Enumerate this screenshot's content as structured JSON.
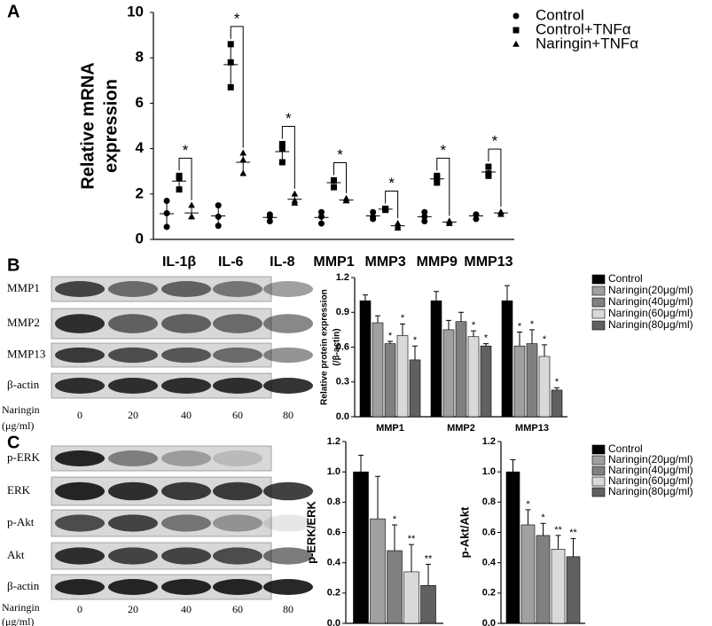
{
  "panels": [
    "A",
    "B",
    "C"
  ],
  "blots": [
    {
      "rows": [
        "MMP1",
        "MMP2",
        "MMP13",
        "β-actin"
      ],
      "treatment": [
        "Naringin",
        "(μg/ml)"
      ],
      "doses": [
        "0",
        "20",
        "40",
        "60",
        "80"
      ]
    },
    {
      "rows": [
        "p-ERK",
        "ERK",
        "p-Akt",
        "Akt",
        "β-actin"
      ],
      "treatment": [
        "Naringin",
        "(μg/ml)"
      ],
      "doses": [
        "0",
        "20",
        "40",
        "60",
        "80"
      ]
    }
  ],
  "chart_data": [
    {
      "type": "dot",
      "ylabel": [
        "Relative mRNA",
        "expression"
      ],
      "categories": [
        "IL-1β",
        "IL-6",
        "IL-8",
        "MMP1",
        "MMP3",
        "MMP9",
        "MMP13"
      ],
      "series": [
        {
          "name": "Control",
          "marker": "circle",
          "color": "#000000",
          "values": [
            [
              1.7,
              1.15,
              0.55
            ],
            [
              1.0,
              0.6,
              1.5
            ],
            [
              1.1,
              0.8,
              1.0
            ],
            [
              1.2,
              0.7,
              1.0
            ],
            [
              1.2,
              0.9,
              1.0
            ],
            [
              1.2,
              0.8,
              1.0
            ],
            [
              1.1,
              0.9,
              1.1
            ]
          ]
        },
        {
          "name": "Control+TNFα",
          "marker": "square",
          "color": "#000000",
          "values": [
            [
              2.8,
              2.2,
              2.7
            ],
            [
              8.6,
              7.8,
              6.7
            ],
            [
              4.2,
              4.0,
              3.4
            ],
            [
              2.6,
              2.3,
              2.6
            ],
            [
              1.35,
              1.3,
              1.35
            ],
            [
              2.7,
              2.5,
              2.8
            ],
            [
              3.2,
              2.8,
              2.9
            ]
          ]
        },
        {
          "name": "Naringin+TNFα",
          "marker": "triangle",
          "color": "#000000",
          "values": [
            [
              1.5,
              1.0,
              1.0
            ],
            [
              3.8,
              3.5,
              2.9
            ],
            [
              2.0,
              1.7,
              1.6
            ],
            [
              1.8,
              1.7,
              1.7
            ],
            [
              0.7,
              0.5,
              0.6
            ],
            [
              0.8,
              0.7,
              0.8
            ],
            [
              1.1,
              1.2,
              1.2
            ]
          ]
        }
      ],
      "significance": [
        "*",
        "*",
        "*",
        "*",
        "*",
        "*",
        "*"
      ],
      "ylim": [
        0,
        10
      ],
      "yticks": [
        0,
        2,
        4,
        6,
        8,
        10
      ]
    },
    {
      "type": "bar",
      "ylabel": [
        "Relative protein expression",
        "(/β-actin)"
      ],
      "categories": [
        "MMP1",
        "MMP2",
        "MMP13"
      ],
      "series": [
        {
          "name": "Control",
          "color": "#000000",
          "values": [
            1.0,
            1.0,
            1.0
          ],
          "errors": [
            0.05,
            0.08,
            0.13
          ],
          "significance": [
            null,
            null,
            null
          ]
        },
        {
          "name": "Naringin(20μg/ml)",
          "color": "#a0a0a0",
          "values": [
            0.81,
            0.75,
            0.61
          ],
          "errors": [
            0.06,
            0.08,
            0.12
          ],
          "significance": [
            null,
            null,
            "*"
          ]
        },
        {
          "name": "Naringin(40μg/ml)",
          "color": "#808080",
          "values": [
            0.63,
            0.82,
            0.63
          ],
          "errors": [
            0.02,
            0.08,
            0.12
          ],
          "significance": [
            "*",
            null,
            "*"
          ]
        },
        {
          "name": "Naringin(60μg/ml)",
          "color": "#d9d9d9",
          "values": [
            0.7,
            0.69,
            0.52
          ],
          "errors": [
            0.1,
            0.05,
            0.1
          ],
          "significance": [
            "*",
            "*",
            "*"
          ]
        },
        {
          "name": "Naringin(80μg/ml)",
          "color": "#606060",
          "values": [
            0.49,
            0.61,
            0.23
          ],
          "errors": [
            0.12,
            0.02,
            0.02
          ],
          "significance": [
            "*",
            "*",
            "*"
          ]
        }
      ],
      "ylim": [
        0,
        1.2
      ],
      "yticks": [
        {
          "value": 0,
          "label": "0.0"
        },
        {
          "value": 0.3,
          "label": "0.3"
        },
        {
          "value": 0.6,
          "label": "0.6"
        },
        {
          "value": 0.9,
          "label": "0.9"
        },
        {
          "value": 1.2,
          "label": "1.2"
        }
      ]
    },
    {
      "type": "bar",
      "ylabel": [
        "p-ERK/ERK"
      ],
      "series": [
        {
          "color": "#000000",
          "values": [
            1.0
          ],
          "errors": [
            0.11
          ],
          "significance": [
            null
          ]
        },
        {
          "color": "#a0a0a0",
          "values": [
            0.69
          ],
          "errors": [
            0.28
          ],
          "significance": [
            null
          ]
        },
        {
          "color": "#808080",
          "values": [
            0.48
          ],
          "errors": [
            0.17
          ],
          "significance": [
            "*"
          ]
        },
        {
          "color": "#d9d9d9",
          "values": [
            0.34
          ],
          "errors": [
            0.18
          ],
          "significance": [
            "**"
          ]
        },
        {
          "color": "#606060",
          "values": [
            0.25
          ],
          "errors": [
            0.14
          ],
          "significance": [
            "**"
          ]
        }
      ],
      "ylim": [
        0,
        1.2
      ],
      "yticks": [
        {
          "value": 0,
          "label": "0.0"
        },
        {
          "value": 0.2,
          "label": "0.2"
        },
        {
          "value": 0.4,
          "label": "0.4"
        },
        {
          "value": 0.6,
          "label": "0.6"
        },
        {
          "value": 0.8,
          "label": "0.8"
        },
        {
          "value": 1,
          "label": "1.0"
        },
        {
          "value": 1.2,
          "label": "1.2"
        }
      ]
    },
    {
      "type": "bar",
      "ylabel": [
        "p-Akt/Akt"
      ],
      "series": [
        {
          "name": "Control",
          "color": "#000000",
          "values": [
            1.0
          ],
          "errors": [
            0.08
          ],
          "significance": [
            null
          ]
        },
        {
          "name": "Naringin(20μg/ml)",
          "color": "#a0a0a0",
          "values": [
            0.65
          ],
          "errors": [
            0.1
          ],
          "significance": [
            "*"
          ]
        },
        {
          "name": "Naringin(40μg/ml)",
          "color": "#808080",
          "values": [
            0.58
          ],
          "errors": [
            0.08
          ],
          "significance": [
            "*"
          ]
        },
        {
          "name": "Naringin(60μg/ml)",
          "color": "#d9d9d9",
          "values": [
            0.49
          ],
          "errors": [
            0.09
          ],
          "significance": [
            "**"
          ]
        },
        {
          "name": "Naringin(80μg/ml)",
          "color": "#606060",
          "values": [
            0.44
          ],
          "errors": [
            0.12
          ],
          "significance": [
            "**"
          ]
        }
      ],
      "ylim": [
        0,
        1.2
      ],
      "yticks": [
        {
          "value": 0,
          "label": "0.0"
        },
        {
          "value": 0.2,
          "label": "0.2"
        },
        {
          "value": 0.4,
          "label": "0.4"
        },
        {
          "value": 0.6,
          "label": "0.6"
        },
        {
          "value": 0.8,
          "label": "0.8"
        },
        {
          "value": 1,
          "label": "1.0"
        },
        {
          "value": 1.2,
          "label": "1.2"
        }
      ]
    }
  ]
}
